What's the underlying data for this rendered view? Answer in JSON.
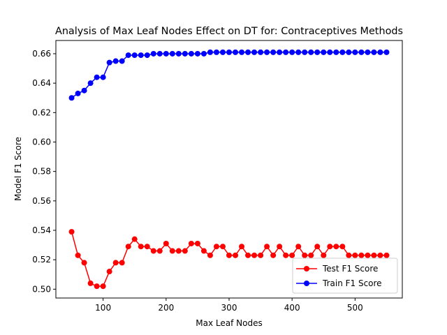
{
  "chart_data": {
    "type": "line",
    "title": "Analysis of Max Leaf Nodes Effect on DT for: Contraceptives Methods",
    "xlabel": "Max Leaf Nodes",
    "ylabel": "Model F1 Score",
    "xlim": [
      25,
      575
    ],
    "ylim": [
      0.494,
      0.669
    ],
    "xticks": [
      100,
      200,
      300,
      400,
      500
    ],
    "yticks": [
      0.5,
      0.52,
      0.54,
      0.56,
      0.58,
      0.6,
      0.62,
      0.64,
      0.66
    ],
    "yticks_format": 2,
    "grid": false,
    "legend_position": "lower-right",
    "x": [
      50,
      60,
      70,
      80,
      90,
      100,
      110,
      120,
      130,
      140,
      150,
      160,
      170,
      180,
      190,
      200,
      210,
      220,
      230,
      240,
      250,
      260,
      270,
      280,
      290,
      300,
      310,
      320,
      330,
      340,
      350,
      360,
      370,
      380,
      390,
      400,
      410,
      420,
      430,
      440,
      450,
      460,
      470,
      480,
      490,
      500,
      510,
      520,
      530,
      540,
      550
    ],
    "series": [
      {
        "name": "Test F1 Score",
        "color": "#ff0000",
        "values": [
          0.539,
          0.523,
          0.518,
          0.504,
          0.502,
          0.502,
          0.512,
          0.518,
          0.518,
          0.529,
          0.534,
          0.529,
          0.529,
          0.526,
          0.526,
          0.531,
          0.526,
          0.526,
          0.526,
          0.531,
          0.531,
          0.526,
          0.523,
          0.529,
          0.529,
          0.523,
          0.523,
          0.529,
          0.523,
          0.523,
          0.523,
          0.529,
          0.523,
          0.529,
          0.523,
          0.523,
          0.529,
          0.523,
          0.523,
          0.529,
          0.523,
          0.529,
          0.529,
          0.529,
          0.523,
          0.523,
          0.523,
          0.523,
          0.523,
          0.523,
          0.523
        ]
      },
      {
        "name": "Train F1 Score",
        "color": "#0000ff",
        "values": [
          0.63,
          0.633,
          0.635,
          0.64,
          0.644,
          0.644,
          0.654,
          0.655,
          0.655,
          0.659,
          0.659,
          0.659,
          0.659,
          0.66,
          0.66,
          0.66,
          0.66,
          0.66,
          0.66,
          0.66,
          0.66,
          0.66,
          0.661,
          0.661,
          0.661,
          0.661,
          0.661,
          0.661,
          0.661,
          0.661,
          0.661,
          0.661,
          0.661,
          0.661,
          0.661,
          0.661,
          0.661,
          0.661,
          0.661,
          0.661,
          0.661,
          0.661,
          0.661,
          0.661,
          0.661,
          0.661,
          0.661,
          0.661,
          0.661,
          0.661,
          0.661
        ]
      }
    ]
  }
}
